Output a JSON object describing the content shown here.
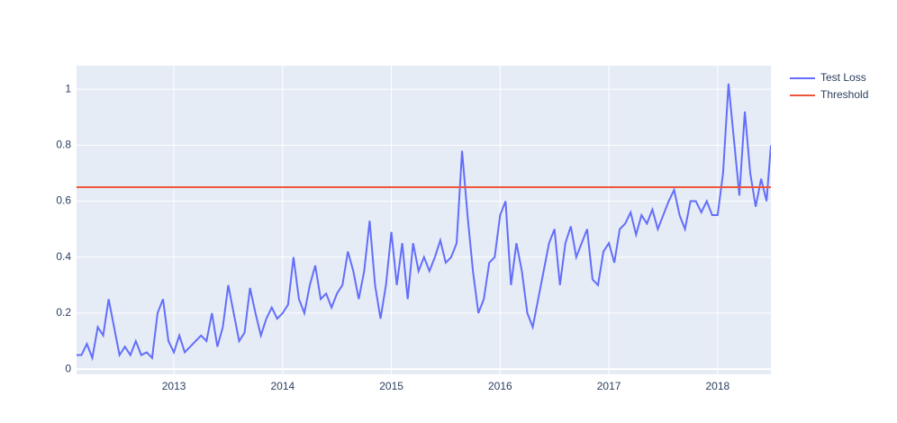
{
  "chart_data": {
    "type": "line",
    "xlim": [
      2012.105,
      2018.49
    ],
    "xticks": [
      2013,
      2014,
      2015,
      2016,
      2017,
      2018
    ],
    "ylim": [
      -0.019,
      1.084
    ],
    "yticks": [
      0,
      0.2,
      0.4,
      0.6,
      0.8,
      1
    ],
    "grid": true,
    "legend": "right",
    "series": [
      {
        "name": "Test Loss",
        "color": "#636efa",
        "x": [
          2012.1,
          2012.15,
          2012.2,
          2012.25,
          2012.3,
          2012.35,
          2012.4,
          2012.45,
          2012.5,
          2012.55,
          2012.6,
          2012.65,
          2012.7,
          2012.75,
          2012.8,
          2012.85,
          2012.9,
          2012.95,
          2013.0,
          2013.05,
          2013.1,
          2013.15,
          2013.2,
          2013.25,
          2013.3,
          2013.35,
          2013.4,
          2013.45,
          2013.5,
          2013.55,
          2013.6,
          2013.65,
          2013.7,
          2013.75,
          2013.8,
          2013.85,
          2013.9,
          2013.95,
          2014.0,
          2014.05,
          2014.1,
          2014.15,
          2014.2,
          2014.25,
          2014.3,
          2014.35,
          2014.4,
          2014.45,
          2014.5,
          2014.55,
          2014.6,
          2014.65,
          2014.7,
          2014.75,
          2014.8,
          2014.85,
          2014.9,
          2014.95,
          2015.0,
          2015.05,
          2015.1,
          2015.15,
          2015.2,
          2015.25,
          2015.3,
          2015.35,
          2015.4,
          2015.45,
          2015.5,
          2015.55,
          2015.6,
          2015.65,
          2015.7,
          2015.75,
          2015.8,
          2015.85,
          2015.9,
          2015.95,
          2016.0,
          2016.05,
          2016.1,
          2016.15,
          2016.2,
          2016.25,
          2016.3,
          2016.35,
          2016.4,
          2016.45,
          2016.5,
          2016.55,
          2016.6,
          2016.65,
          2016.7,
          2016.75,
          2016.8,
          2016.85,
          2016.9,
          2016.95,
          2017.0,
          2017.05,
          2017.1,
          2017.15,
          2017.2,
          2017.25,
          2017.3,
          2017.35,
          2017.4,
          2017.45,
          2017.5,
          2017.55,
          2017.6,
          2017.65,
          2017.7,
          2017.75,
          2017.8,
          2017.85,
          2017.9,
          2017.95,
          2018.0,
          2018.05,
          2018.1,
          2018.15,
          2018.2,
          2018.25,
          2018.3,
          2018.35,
          2018.4,
          2018.45,
          2018.49
        ],
        "values": [
          0.05,
          0.05,
          0.09,
          0.04,
          0.15,
          0.12,
          0.25,
          0.15,
          0.05,
          0.08,
          0.05,
          0.1,
          0.05,
          0.06,
          0.04,
          0.2,
          0.25,
          0.1,
          0.06,
          0.12,
          0.06,
          0.08,
          0.1,
          0.12,
          0.1,
          0.2,
          0.08,
          0.15,
          0.3,
          0.2,
          0.1,
          0.13,
          0.29,
          0.2,
          0.12,
          0.18,
          0.22,
          0.18,
          0.2,
          0.23,
          0.4,
          0.25,
          0.2,
          0.3,
          0.37,
          0.25,
          0.27,
          0.22,
          0.27,
          0.3,
          0.42,
          0.35,
          0.25,
          0.35,
          0.53,
          0.3,
          0.18,
          0.3,
          0.49,
          0.3,
          0.45,
          0.25,
          0.45,
          0.35,
          0.4,
          0.35,
          0.4,
          0.46,
          0.38,
          0.4,
          0.45,
          0.78,
          0.55,
          0.35,
          0.2,
          0.25,
          0.38,
          0.4,
          0.55,
          0.6,
          0.3,
          0.45,
          0.35,
          0.2,
          0.15,
          0.25,
          0.35,
          0.45,
          0.5,
          0.3,
          0.45,
          0.51,
          0.4,
          0.45,
          0.5,
          0.32,
          0.3,
          0.42,
          0.45,
          0.38,
          0.5,
          0.52,
          0.56,
          0.48,
          0.55,
          0.52,
          0.57,
          0.5,
          0.55,
          0.6,
          0.64,
          0.55,
          0.5,
          0.6,
          0.6,
          0.56,
          0.6,
          0.55,
          0.55,
          0.7,
          1.02,
          0.82,
          0.62,
          0.92,
          0.7,
          0.58,
          0.68,
          0.6,
          0.8
        ]
      },
      {
        "name": "Threshold",
        "color": "#ef553b",
        "x": [
          2012.105,
          2018.49
        ],
        "values": [
          0.65,
          0.65
        ]
      }
    ]
  }
}
